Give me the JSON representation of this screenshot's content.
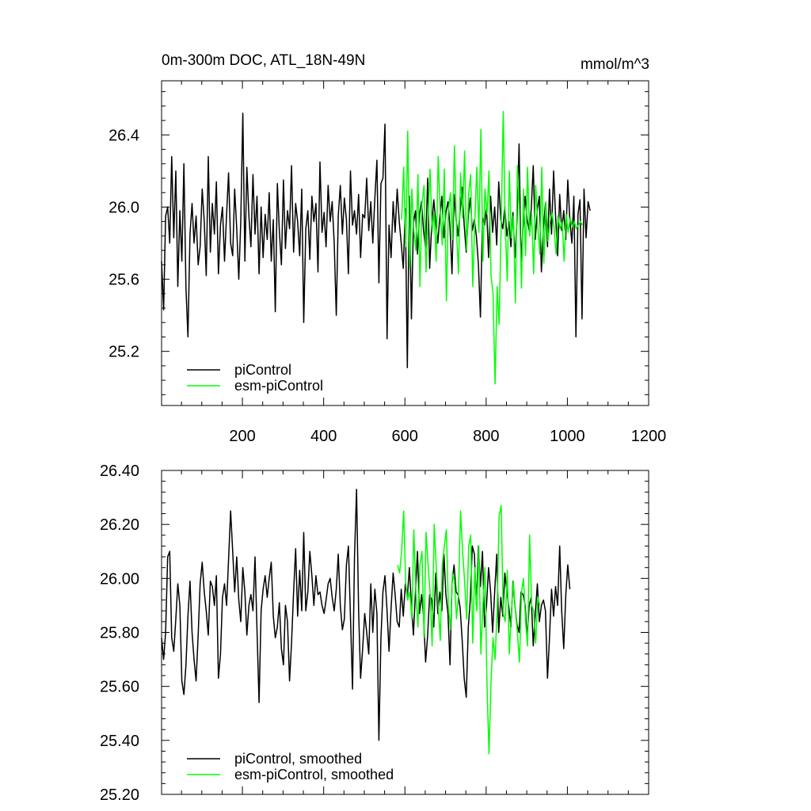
{
  "chart_data": [
    {
      "type": "line",
      "title": "0m-300m DOC, ATL_18N-49N",
      "units": "mmol/m^3",
      "xlim": [
        1,
        1200
      ],
      "ylim": [
        24.9,
        26.7
      ],
      "xticks": [
        200,
        400,
        600,
        800,
        1000,
        1200
      ],
      "yticks": [
        25.2,
        25.6,
        26.0,
        26.4
      ],
      "ytick_labels": [
        "25.2",
        "25.6",
        "26.0",
        "26.4"
      ],
      "legend_position": "bottom-left",
      "series": [
        {
          "name": "piControl",
          "color": "#000000",
          "x_start": 1,
          "x_step": 5,
          "values": [
            25.7,
            25.43,
            25.95,
            26.0,
            25.8,
            26.28,
            25.83,
            26.2,
            25.56,
            25.98,
            25.7,
            26.24,
            25.55,
            25.28,
            25.85,
            26.02,
            25.8,
            25.95,
            25.68,
            25.78,
            26.1,
            25.92,
            25.62,
            26.28,
            25.75,
            26.02,
            25.85,
            26.14,
            25.63,
            25.9,
            26.0,
            25.7,
            25.96,
            26.19,
            25.8,
            25.73,
            26.1,
            25.88,
            25.6,
            25.92,
            26.52,
            25.7,
            26.22,
            25.95,
            25.78,
            26.18,
            25.85,
            26.06,
            25.63,
            26.0,
            25.72,
            25.96,
            25.82,
            26.08,
            25.7,
            25.93,
            25.42,
            26.13,
            25.87,
            25.68,
            26.15,
            25.77,
            25.98,
            25.88,
            26.23,
            25.75,
            26.02,
            25.92,
            25.73,
            26.1,
            25.36,
            25.88,
            25.98,
            25.71,
            26.06,
            25.92,
            26.02,
            25.64,
            26.25,
            25.86,
            25.97,
            25.78,
            26.12,
            25.92,
            26.03,
            25.8,
            25.4,
            25.95,
            26.12,
            25.85,
            26.05,
            25.93,
            25.63,
            26.2,
            25.9,
            25.98,
            25.85,
            26.07,
            25.72,
            25.96,
            25.94,
            26.16,
            25.87,
            26.03,
            25.8,
            26.05,
            26.26,
            25.58,
            26.13,
            26.16,
            26.46,
            25.27,
            25.9,
            25.72,
            26.03,
            25.86,
            26.1,
            25.92,
            25.8,
            25.66,
            25.99,
            25.11,
            26.06,
            25.38,
            25.91,
            25.98,
            25.74,
            25.96,
            26.03,
            25.87,
            25.77,
            26.16,
            25.66,
            25.9,
            26.04,
            25.92,
            25.8,
            25.95,
            26.06,
            25.83,
            25.97,
            26.03,
            25.89,
            25.63,
            26.07,
            25.93,
            25.84,
            25.98,
            26.11,
            25.9,
            25.75,
            25.95,
            26.05,
            25.87,
            25.93,
            25.84,
            25.68,
            25.39,
            25.94,
            25.9,
            26.0,
            25.72,
            26.06,
            25.86,
            26.0,
            25.79,
            26.14,
            25.93,
            25.88,
            26.0,
            25.84,
            25.92,
            25.78,
            25.97,
            25.72,
            25.93,
            26.35,
            25.7,
            25.89,
            26.06,
            25.93,
            25.87,
            25.99,
            26.23,
            25.82,
            25.99,
            26.06,
            25.64,
            25.89,
            26.02,
            25.78,
            26.1,
            25.85,
            26.2,
            25.95,
            25.73,
            26.07,
            25.87,
            25.98,
            25.82,
            26.15,
            25.93,
            25.8,
            26.06,
            25.28,
            25.96,
            26.04,
            25.38,
            26.1,
            25.83,
            26.03,
            25.98
          ]
        },
        {
          "name": "esm-piControl",
          "color": "#00ff00",
          "x_start": 592,
          "x_step": 5,
          "values": [
            25.93,
            26.22,
            25.78,
            26.42,
            25.66,
            26.1,
            25.87,
            25.76,
            26.18,
            25.56,
            26.02,
            26.12,
            25.64,
            25.94,
            26.21,
            25.86,
            25.97,
            25.7,
            26.28,
            25.97,
            25.79,
            26.21,
            25.48,
            25.98,
            26.08,
            25.82,
            26.34,
            25.87,
            25.63,
            26.19,
            25.94,
            26.31,
            25.76,
            26.08,
            26.18,
            25.56,
            25.92,
            26.22,
            25.86,
            26.43,
            25.7,
            26.1,
            25.96,
            26.2,
            25.62,
            25.52,
            25.02,
            25.56,
            25.35,
            25.9,
            26.53,
            25.9,
            25.59,
            26.2,
            25.83,
            25.95,
            25.47,
            26.23,
            25.98,
            25.55,
            26.1,
            25.73,
            26.22,
            25.84,
            25.96,
            25.63,
            26.12,
            25.9,
            25.74,
            26.22,
            25.69,
            26.03,
            25.81,
            25.92,
            25.97,
            25.89,
            25.74,
            25.95,
            25.88,
            25.92,
            25.7,
            25.96,
            25.86,
            25.94,
            25.89,
            25.92,
            25.88,
            25.9,
            25.92,
            25.9
          ]
        }
      ]
    },
    {
      "type": "line",
      "xlim": [
        1,
        1200
      ],
      "ylim": [
        25.2,
        26.4
      ],
      "xticks": [
        200,
        400,
        600,
        800,
        1000,
        1200
      ],
      "yticks": [
        25.2,
        25.4,
        25.6,
        25.8,
        26.0,
        26.2,
        26.4
      ],
      "ytick_labels": [
        "25.20",
        "25.40",
        "25.60",
        "25.80",
        "26.00",
        "26.20",
        "26.40"
      ],
      "legend_position": "bottom-left",
      "series": [
        {
          "name": "piControl, smoothed",
          "color": "#000000",
          "x_start": 1,
          "x_step": 5,
          "values": [
            25.78,
            25.7,
            25.8,
            26.08,
            26.1,
            25.78,
            25.73,
            25.85,
            25.98,
            25.9,
            25.62,
            25.57,
            25.68,
            25.86,
            25.99,
            25.8,
            25.7,
            25.62,
            25.79,
            25.98,
            26.06,
            25.95,
            25.88,
            25.79,
            25.99,
            25.97,
            25.9,
            26.01,
            25.63,
            25.72,
            25.93,
            25.98,
            25.9,
            26.07,
            26.25,
            26.1,
            25.95,
            26.08,
            25.92,
            25.84,
            26.04,
            25.95,
            25.79,
            25.9,
            25.94,
            25.88,
            26.08,
            25.81,
            25.54,
            25.88,
            25.96,
            26.01,
            25.93,
            26.0,
            26.06,
            25.86,
            25.78,
            25.82,
            25.91,
            25.74,
            25.68,
            25.9,
            25.84,
            25.62,
            25.76,
            25.95,
            26.11,
            25.86,
            26.03,
            25.88,
            26.17,
            25.88,
            25.95,
            26.1,
            26.01,
            25.9,
            26.01,
            25.94,
            25.95,
            25.9,
            25.87,
            25.92,
            25.98,
            26.0,
            25.93,
            25.88,
            25.96,
            26.09,
            25.9,
            25.81,
            25.85,
            26.05,
            26.12,
            25.86,
            25.59,
            26.08,
            26.33,
            25.88,
            25.63,
            25.74,
            25.87,
            25.8,
            25.72,
            25.98,
            25.8,
            25.96,
            25.87,
            25.4,
            25.78,
            25.95,
            26.01,
            25.88,
            25.73,
            25.89,
            26.02,
            25.94,
            25.84,
            25.82,
            25.96,
            25.86,
            25.98,
            25.93,
            26.04,
            25.9,
            25.79,
            25.95,
            26.1,
            25.87,
            25.94,
            25.86,
            25.69,
            25.79,
            25.94,
            25.92,
            25.82,
            26.02,
            25.87,
            25.95,
            25.88,
            26.09,
            25.94,
            25.87,
            25.68,
            25.98,
            26.05,
            25.95,
            25.94,
            25.89,
            25.77,
            25.63,
            25.56,
            25.82,
            25.92,
            26.12,
            26.09,
            25.9,
            26.12,
            25.97,
            26.1,
            25.82,
            25.9,
            26.04,
            25.95,
            25.8,
            25.95,
            26.09,
            25.8,
            25.93,
            25.86,
            26.02,
            25.95,
            25.89,
            25.82,
            25.99,
            25.9,
            25.83,
            25.8,
            25.95,
            25.94,
            25.9,
            25.78,
            25.9,
            25.93,
            25.75,
            25.87,
            25.98,
            25.84,
            25.9,
            25.92,
            25.88,
            25.63,
            25.78,
            25.96,
            25.86,
            25.97,
            25.9,
            26.12,
            25.88,
            25.74,
            25.94,
            26.05,
            25.96
          ]
        },
        {
          "name": "esm-piControl, smoothed",
          "color": "#00ff00",
          "x_start": 582,
          "x_step": 5,
          "values": [
            26.05,
            26.02,
            26.1,
            26.25,
            25.98,
            25.92,
            25.95,
            25.85,
            26.18,
            25.95,
            25.82,
            26.05,
            26.1,
            25.78,
            26.17,
            26.05,
            25.95,
            25.75,
            26.2,
            26.05,
            25.9,
            25.77,
            26.05,
            26.12,
            26.18,
            25.9,
            25.81,
            26.02,
            25.99,
            25.85,
            25.94,
            26.25,
            26.1,
            25.99,
            25.85,
            26.12,
            26.16,
            25.76,
            26.04,
            25.88,
            26.12,
            25.72,
            25.9,
            26.04,
            25.61,
            25.35,
            25.62,
            25.78,
            25.7,
            25.88,
            26.23,
            26.27,
            25.87,
            25.84,
            26.03,
            25.72,
            25.87,
            25.99,
            25.88,
            25.8,
            25.69,
            25.95,
            26.0,
            25.84,
            25.75,
            26.16,
            25.9,
            25.88,
            25.76,
            25.93,
            25.9
          ]
        }
      ]
    }
  ]
}
